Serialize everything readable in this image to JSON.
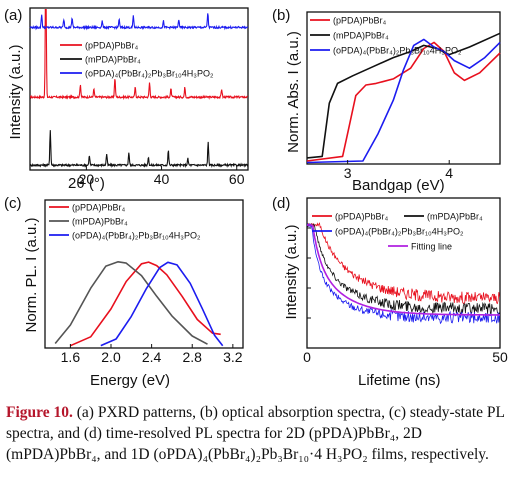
{
  "panels": {
    "a": {
      "label": "(a)",
      "xlabel": "2θ (°)",
      "ylabel": "Intensity (a.u.)",
      "xticks": [
        "20",
        "40",
        "60"
      ],
      "legend": [
        "(pPDA)PbBr₄",
        "(mPDA)PbBr₄",
        "(oPDA)₄(PbBr₄)₂Pb₃Br₁₀4H₃PO₂"
      ]
    },
    "b": {
      "label": "(b)",
      "xlabel": "Bandgap (eV)",
      "ylabel": "Norm. Abs. I (a.u.)",
      "xticks": [
        "3",
        "4"
      ],
      "legend": [
        "(pPDA)PbBr₄",
        "(mPDA)PbBr₄",
        "(oPDA)₄(PbBr₄)₂Pb₃Br₁₀4H₃PO₂"
      ]
    },
    "c": {
      "label": "(c)",
      "xlabel": "Energy (eV)",
      "ylabel": "Norm. PL. I (a.u.)",
      "xticks": [
        "1.6",
        "2.0",
        "2.4",
        "2.8",
        "3.2"
      ],
      "legend": [
        "(pPDA)PbBr₄",
        "(mPDA)PbBr₄",
        "(oPDA)₄(PbBr₄)₂Pb₃Br₁₀4H₃PO₂"
      ]
    },
    "d": {
      "label": "(d)",
      "xlabel": "Lifetime (ns)",
      "ylabel": "Intensity (a.u.)",
      "xticks": [
        "0",
        "50"
      ],
      "legend": [
        "(pPDA)PbBr₄",
        "(mPDA)PbBr₄",
        "(oPDA)₄(PbBr₄)₂Pb₃Br₁₀4H₃PO₂",
        "Fitting line"
      ]
    }
  },
  "colors": {
    "red": "#e8101e",
    "black": "#111111",
    "blue": "#1c1cf0",
    "gray": "#555555",
    "purple": "#b020e0"
  },
  "caption": {
    "label": "Figure 10.",
    "text": " (a) PXRD patterns, (b) optical absorption spectra, (c) steady-state PL spectra, and (d) time-resolved PL spectra for 2D (pPDA)PbBr₄, 2D (mPDA)PbBr₄, and 1D (oPDA)₄(PbBr₄)₂Pb₃Br₁₀·4 H₃PO₂ films, respectively."
  },
  "chart_data": [
    {
      "type": "line",
      "panel": "a",
      "title": "",
      "xlabel": "2θ (°)",
      "ylabel": "Intensity (a.u.)",
      "xlim": [
        5,
        63
      ],
      "series": [
        {
          "name": "(pPDA)PbBr₄",
          "color": "red",
          "offset": 0.45,
          "peaks": [
            [
              9.2,
              0.95
            ],
            [
              18.4,
              0.08
            ],
            [
              22.0,
              0.05
            ],
            [
              27.6,
              0.12
            ],
            [
              33.0,
              0.06
            ],
            [
              36.8,
              0.09
            ],
            [
              42.5,
              0.05
            ],
            [
              46.2,
              0.06
            ],
            [
              56.0,
              0.05
            ]
          ]
        },
        {
          "name": "(mPDA)PbBr₄",
          "color": "black",
          "offset": 0.03,
          "peaks": [
            [
              10.4,
              0.22
            ],
            [
              20.8,
              0.06
            ],
            [
              25.4,
              0.07
            ],
            [
              31.3,
              0.08
            ],
            [
              36.5,
              0.05
            ],
            [
              41.8,
              0.09
            ],
            [
              47.0,
              0.04
            ],
            [
              52.4,
              0.14
            ]
          ]
        },
        {
          "name": "(oPDA)₄(PbBr₄)₂Pb₃Br₁₀4H₃PO₂",
          "color": "blue",
          "offset": 0.88,
          "peaks": [
            [
              8.1,
              0.08
            ],
            [
              14.0,
              0.05
            ],
            [
              16.2,
              0.06
            ],
            [
              24.2,
              0.04
            ],
            [
              28.7,
              0.05
            ],
            [
              32.5,
              0.07
            ],
            [
              40.5,
              0.04
            ],
            [
              44.6,
              0.05
            ],
            [
              52.3,
              0.09
            ]
          ]
        }
      ]
    },
    {
      "type": "line",
      "panel": "b",
      "title": "",
      "xlabel": "Bandgap (eV)",
      "ylabel": "Norm. Abs. I (a.u.)",
      "xlim": [
        2.6,
        4.5
      ],
      "series": [
        {
          "name": "(pPDA)PbBr₄",
          "color": "red",
          "x": [
            2.6,
            2.95,
            3.0,
            3.08,
            3.18,
            3.28,
            3.45,
            3.62,
            3.75,
            3.85,
            3.95,
            4.05,
            4.15,
            4.3,
            4.5
          ],
          "y": [
            0.02,
            0.05,
            0.2,
            0.45,
            0.52,
            0.53,
            0.56,
            0.63,
            0.76,
            0.8,
            0.74,
            0.6,
            0.55,
            0.6,
            0.73
          ]
        },
        {
          "name": "(mPDA)PbBr₄",
          "color": "black",
          "x": [
            2.6,
            2.75,
            2.82,
            2.9,
            3.05,
            3.25,
            3.45,
            3.62,
            3.75,
            3.88,
            4.0,
            4.2,
            4.5
          ],
          "y": [
            0.04,
            0.05,
            0.4,
            0.53,
            0.58,
            0.64,
            0.7,
            0.74,
            0.78,
            0.76,
            0.72,
            0.77,
            0.86
          ]
        },
        {
          "name": "(oPDA)₄(PbBr₄)₂Pb₃Br₁₀4H₃PO₂",
          "color": "blue",
          "x": [
            2.6,
            3.15,
            3.3,
            3.45,
            3.55,
            3.65,
            3.75,
            3.85,
            3.95,
            4.05,
            4.2,
            4.35,
            4.5
          ],
          "y": [
            0.01,
            0.02,
            0.2,
            0.42,
            0.62,
            0.78,
            0.82,
            0.77,
            0.74,
            0.68,
            0.63,
            0.7,
            0.8
          ]
        }
      ]
    },
    {
      "type": "line",
      "panel": "c",
      "title": "",
      "xlabel": "Energy (eV)",
      "ylabel": "Norm. PL. I (a.u.)",
      "xlim": [
        1.35,
        3.3
      ],
      "series": [
        {
          "name": "(pPDA)PbBr₄",
          "color": "red",
          "x": [
            1.6,
            1.8,
            2.0,
            2.15,
            2.3,
            2.37,
            2.45,
            2.55,
            2.7,
            2.85,
            3.0,
            3.08
          ],
          "y": [
            0.03,
            0.14,
            0.45,
            0.78,
            0.97,
            1.0,
            0.96,
            0.85,
            0.6,
            0.33,
            0.18,
            0.16
          ]
        },
        {
          "name": "(mPDA)PbBr₄",
          "color": "gray",
          "x": [
            1.45,
            1.6,
            1.8,
            1.95,
            2.07,
            2.15,
            2.3,
            2.45,
            2.6,
            2.8,
            2.95
          ],
          "y": [
            0.05,
            0.26,
            0.7,
            0.95,
            1.0,
            0.98,
            0.85,
            0.6,
            0.38,
            0.14,
            0.05
          ]
        },
        {
          "name": "(oPDA)₄(PbBr₄)₂Pb₃Br₁₀4H₃PO₂",
          "color": "blue",
          "x": [
            1.9,
            2.05,
            2.2,
            2.35,
            2.48,
            2.56,
            2.65,
            2.78,
            2.9,
            3.02,
            3.1
          ],
          "y": [
            0.02,
            0.1,
            0.36,
            0.7,
            0.94,
            1.0,
            0.96,
            0.75,
            0.45,
            0.15,
            0.03
          ]
        }
      ]
    },
    {
      "type": "line",
      "panel": "d",
      "title": "",
      "xlabel": "Lifetime (ns)",
      "ylabel": "Intensity (a.u.)",
      "xlim": [
        0,
        50
      ],
      "series": [
        {
          "name": "(pPDA)PbBr₄",
          "color": "red",
          "amp1": 0.35,
          "tau1": 2.2,
          "amp2": 0.6,
          "tau2": 9.0,
          "floor": 0.33
        },
        {
          "name": "(mPDA)PbBr₄",
          "color": "black",
          "amp1": 0.45,
          "tau1": 2.0,
          "amp2": 0.5,
          "tau2": 8.0,
          "floor": 0.26
        },
        {
          "name": "(oPDA)₄(PbBr₄)₂Pb₃Br₁₀4H₃PO₂",
          "color": "blue",
          "amp1": 0.55,
          "tau1": 1.6,
          "amp2": 0.42,
          "tau2": 7.0,
          "floor": 0.2
        },
        {
          "name": "Fitting line",
          "color": "purple",
          "amp1": 0.5,
          "tau1": 1.8,
          "amp2": 0.46,
          "tau2": 7.5,
          "floor": 0.22
        }
      ]
    }
  ]
}
